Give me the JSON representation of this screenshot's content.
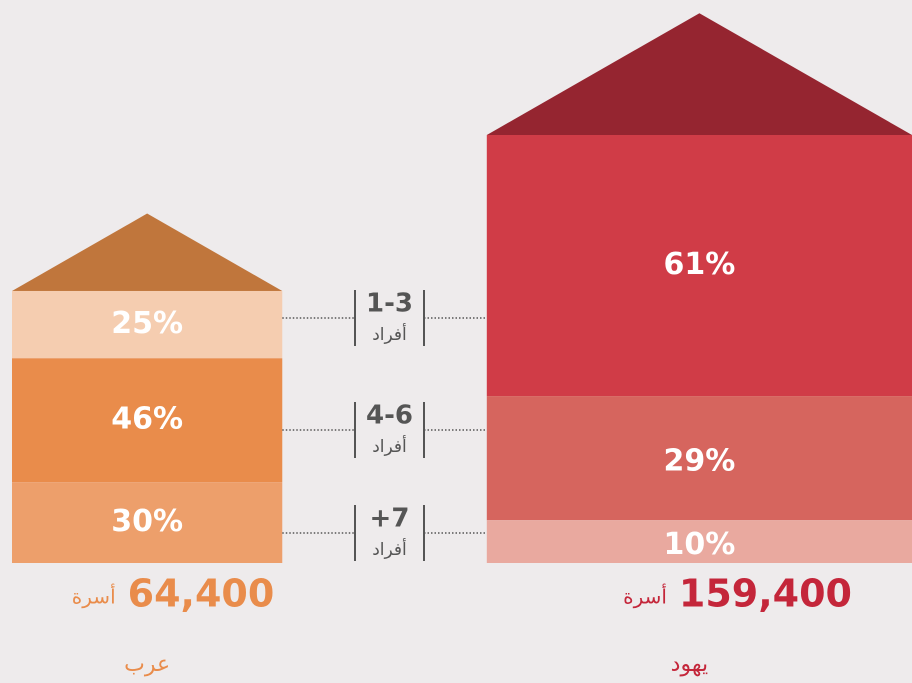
{
  "chart_data": {
    "type": "house",
    "categories": [
      "1-3",
      "4-6",
      "+7"
    ],
    "category_unit": "أفراد",
    "series": [
      {
        "name": "عرب",
        "roof_color": "#c0763c",
        "label_color": "#e98c4b",
        "colors": [
          "#f5cdb0",
          "#e98c4b",
          "#ed9f6b"
        ],
        "values": [
          25,
          46,
          30
        ],
        "value_labels": [
          "25%",
          "46%",
          "30%"
        ],
        "total": 64400,
        "total_label": "64,400",
        "total_unit": "أسرة"
      },
      {
        "name": "يهود",
        "roof_color": "#952530",
        "label_color": "#c4263a",
        "colors": [
          "#d03c47",
          "#d6655e",
          "#e9a99f"
        ],
        "values": [
          61,
          29,
          10
        ],
        "value_labels": [
          "61%",
          "29%",
          "10%"
        ],
        "total": 159400,
        "total_label": "159,400",
        "total_unit": "أسرة"
      }
    ]
  }
}
